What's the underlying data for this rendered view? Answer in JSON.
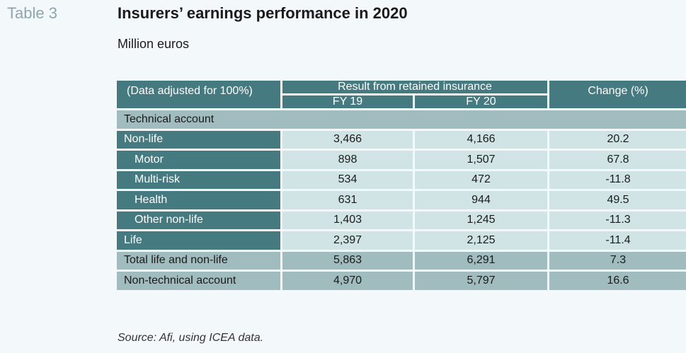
{
  "table_label": "Table 3",
  "title": "Insurers’ earnings performance in 2020",
  "subtitle": "Million euros",
  "header": {
    "first_col": "(Data adjusted for 100%)",
    "group": "Result from retained insurance",
    "fy19": "FY 19",
    "fy20": "FY 20",
    "change": "Change (%)"
  },
  "section_label": "Technical account",
  "rows": [
    {
      "label": "Non-life",
      "fy19": "3,466",
      "fy20": "4,166",
      "change": "20.2"
    },
    {
      "label": "Motor",
      "fy19": "898",
      "fy20": "1,507",
      "change": "67.8"
    },
    {
      "label": "Multi-risk",
      "fy19": "534",
      "fy20": "472",
      "change": "-11.8"
    },
    {
      "label": "Health",
      "fy19": "631",
      "fy20": "944",
      "change": "49.5"
    },
    {
      "label": "Other non-life",
      "fy19": "1,403",
      "fy20": "1,245",
      "change": "-11.3"
    },
    {
      "label": "Life",
      "fy19": "2,397",
      "fy20": "2,125",
      "change": "-11.4"
    },
    {
      "label": "Total life and non-life",
      "fy19": "5,863",
      "fy20": "6,291",
      "change": "7.3"
    },
    {
      "label": "Non-technical account",
      "fy19": "4,970",
      "fy20": "5,797",
      "change": "16.6"
    }
  ],
  "source": "Source: Afi, using ICEA data."
}
